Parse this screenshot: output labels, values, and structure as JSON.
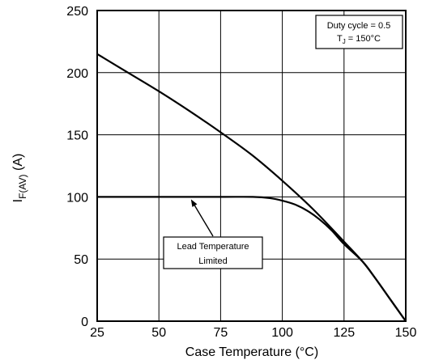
{
  "chart_data": {
    "type": "line",
    "xlabel": "Case Temperature (°C)",
    "ylabel": {
      "main": "I",
      "subscript": "F(AV)",
      "unit": " (A)"
    },
    "xlim": [
      25,
      150
    ],
    "ylim": [
      0,
      250
    ],
    "xticks": [
      25,
      50,
      75,
      100,
      125,
      150
    ],
    "yticks": [
      0,
      50,
      100,
      150,
      200,
      250
    ],
    "grid": true,
    "series": [
      {
        "x": [
          25,
          37.5,
          50,
          62.5,
          75,
          87.5,
          100,
          112.5,
          125,
          132.5,
          137.5,
          142.5,
          150
        ],
        "y": [
          215,
          200,
          185,
          169,
          152,
          134,
          113,
          90,
          64,
          48,
          35,
          21,
          0
        ]
      },
      {
        "x": [
          25,
          50,
          75,
          88,
          95,
          100,
          105,
          110,
          115,
          120,
          125,
          132.5,
          137.5,
          142.5,
          150
        ],
        "y": [
          100,
          100,
          100,
          100,
          99,
          97,
          94,
          89,
          82,
          73,
          62,
          48,
          35,
          21,
          0
        ]
      }
    ],
    "annotations": {
      "conditions": {
        "line1": "Duty cycle = 0.5",
        "line2_main": "T",
        "line2_sub": "J",
        "line2_rest": " = 150°C"
      },
      "lead_temperature": {
        "line1": "Lead Temperature",
        "line2": "Limited",
        "arrow_target": {
          "x": 63,
          "y": 100
        }
      }
    }
  }
}
